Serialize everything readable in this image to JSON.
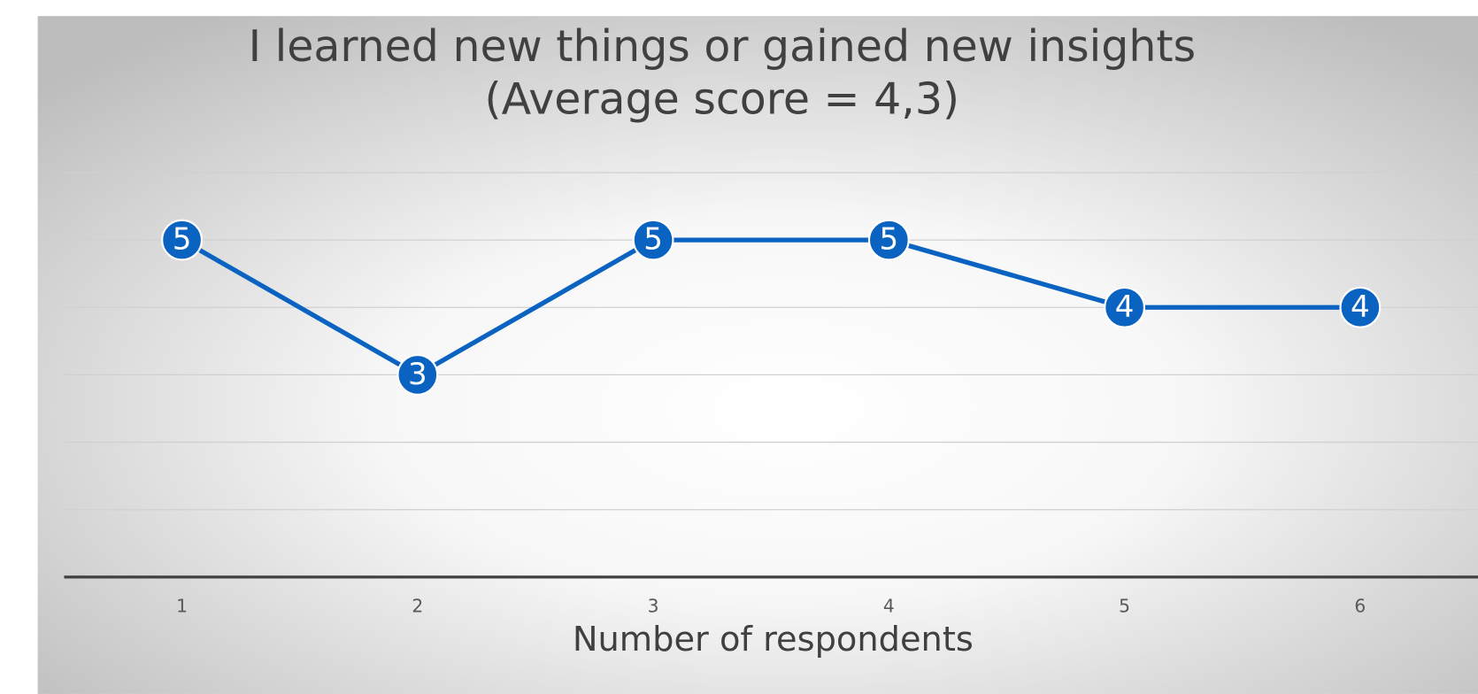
{
  "chart_data": {
    "type": "line",
    "title": "I learned new things or gained new insights",
    "subtitle": "(Average score = 4,3)",
    "x_label": "Number of respondents",
    "categories": [
      "1",
      "2",
      "3",
      "4",
      "5",
      "6"
    ],
    "values": [
      5,
      3,
      5,
      5,
      4,
      4
    ],
    "color": "#0b63c1",
    "ylim": [
      0,
      6
    ],
    "yticks": [
      0,
      1,
      2,
      3,
      4,
      5,
      6
    ],
    "grid": true
  }
}
